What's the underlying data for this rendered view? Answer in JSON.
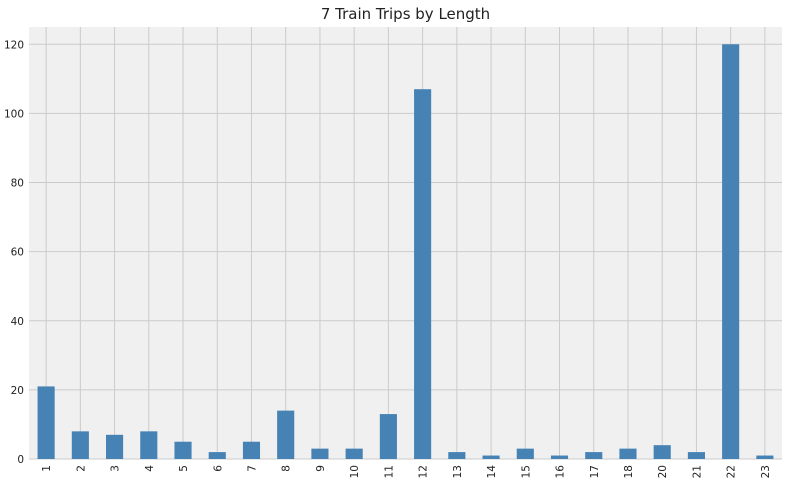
{
  "chart_data": {
    "type": "bar",
    "title": "7 Train Trips by Length",
    "xlabel": "",
    "ylabel": "",
    "categories": [
      "1",
      "2",
      "3",
      "4",
      "5",
      "6",
      "7",
      "8",
      "9",
      "10",
      "11",
      "12",
      "13",
      "14",
      "15",
      "16",
      "17",
      "18",
      "20",
      "21",
      "22",
      "23"
    ],
    "values": [
      21,
      8,
      7,
      8,
      5,
      2,
      5,
      14,
      3,
      3,
      13,
      107,
      2,
      1,
      3,
      1,
      2,
      3,
      4,
      2,
      120,
      1
    ],
    "ylim": [
      0,
      125
    ],
    "yticks": [
      0,
      20,
      40,
      60,
      80,
      100,
      120
    ],
    "grid": true,
    "bar_color": "#4682b4",
    "background_color": "#f0f0f0",
    "grid_color": "#cbcbcb"
  }
}
